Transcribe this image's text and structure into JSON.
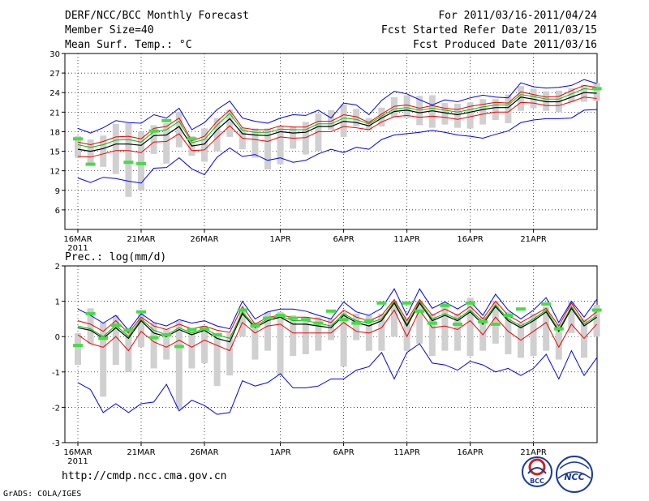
{
  "header": {
    "title": "DERF/NCC/BCC Monthly Forecast",
    "member_size": "Member Size=40",
    "variable": "Mean Surf. Temp.: °C",
    "period": "For 2011/03/16-2011/04/24",
    "started": "Fcst Started Refer Date 2011/03/15",
    "produced": "Fcst Produced Date 2011/03/16"
  },
  "footer": {
    "url": "http://cmdp.ncc.cma.gov.cn",
    "grads": "GrADS: COLA/IGES",
    "logo_left": "BCC",
    "logo_right": "NCC"
  },
  "colors": {
    "upper": "#0000ee",
    "upper_mid": "#ee0000",
    "mean": "#000000",
    "inner_upper": "#00bb00",
    "box": "#d0d0d0",
    "observed": "#44dd44"
  },
  "chart_data": [
    {
      "type": "line",
      "title": "Mean Surf. Temp.: °C",
      "ylim": [
        3,
        30
      ],
      "yticks": [
        6,
        9,
        12,
        15,
        18,
        21,
        24,
        27,
        30
      ],
      "xticks": [
        "16MAR",
        "21MAR",
        "26MAR",
        "1APR",
        "6APR",
        "11APR",
        "16APR",
        "21APR"
      ],
      "xtick_day": [
        0,
        5,
        10,
        16,
        21,
        26,
        31,
        36
      ],
      "year_label": "2011",
      "series": {
        "max": [
          18.5,
          17.8,
          18.6,
          19.7,
          19.4,
          19.3,
          20.6,
          20.1,
          21.6,
          18.3,
          19.4,
          21.4,
          22.7,
          20.1,
          19.6,
          19.3,
          20.1,
          20.6,
          20.5,
          21.3,
          20.1,
          22.4,
          22.1,
          20.6,
          22.8,
          24.2,
          23.8,
          22.9,
          22.1,
          22.9,
          22.6,
          23.2,
          23.6,
          23.3,
          23.2,
          25.5,
          24.9,
          24.7,
          24.8,
          25.1,
          26.0,
          25.4
        ],
        "upper": [
          16.4,
          16.0,
          16.5,
          17.2,
          17.3,
          16.9,
          18.5,
          18.8,
          20.1,
          16.6,
          17.3,
          19.6,
          21.3,
          18.6,
          18.3,
          18.3,
          18.9,
          18.7,
          18.7,
          19.6,
          19.6,
          20.6,
          20.3,
          19.4,
          20.7,
          21.9,
          22.1,
          21.6,
          22.0,
          21.6,
          21.4,
          21.9,
          22.2,
          22.5,
          22.4,
          24.1,
          23.7,
          23.3,
          23.4,
          24.3,
          25.1,
          24.8
        ],
        "mean": [
          15.3,
          15.0,
          15.4,
          16.1,
          16.1,
          15.9,
          17.4,
          17.5,
          18.8,
          15.8,
          16.1,
          18.3,
          20.0,
          17.7,
          17.5,
          17.4,
          18.0,
          17.8,
          17.9,
          18.8,
          18.8,
          19.6,
          19.4,
          18.9,
          20.1,
          21.1,
          21.3,
          20.9,
          21.2,
          20.9,
          20.6,
          21.0,
          21.4,
          21.7,
          21.7,
          23.3,
          23.0,
          22.6,
          22.6,
          23.3,
          24.0,
          23.9
        ],
        "lower": [
          14.2,
          14.1,
          14.6,
          15.1,
          15.1,
          14.8,
          16.4,
          16.5,
          17.7,
          15.1,
          15.2,
          17.1,
          18.9,
          17.0,
          16.8,
          16.5,
          17.2,
          17.0,
          17.1,
          18.0,
          18.0,
          18.8,
          18.6,
          18.3,
          19.5,
          20.3,
          20.5,
          20.2,
          20.4,
          20.2,
          19.9,
          20.3,
          20.7,
          21.0,
          21.0,
          22.5,
          22.4,
          22.0,
          22.0,
          22.6,
          23.3,
          23.1
        ],
        "min": [
          10.9,
          10.2,
          11.0,
          10.8,
          10.4,
          10.1,
          12.4,
          12.5,
          14.0,
          12.3,
          11.4,
          14.1,
          15.5,
          14.2,
          14.5,
          13.6,
          14.0,
          13.3,
          13.6,
          14.6,
          15.3,
          14.8,
          15.6,
          15.3,
          16.8,
          17.5,
          17.7,
          17.9,
          18.2,
          17.9,
          17.5,
          17.3,
          17.0,
          17.6,
          18.1,
          19.4,
          19.8,
          20.0,
          20.0,
          20.1,
          21.3,
          21.4
        ],
        "inner_upper": [
          16.0,
          15.6,
          16.0,
          16.7,
          16.8,
          16.4,
          18.0,
          18.3,
          19.6,
          16.3,
          16.8,
          19.0,
          20.8,
          18.2,
          17.9,
          17.9,
          18.4,
          18.3,
          18.3,
          19.2,
          19.2,
          20.1,
          19.9,
          19.2,
          20.4,
          21.5,
          21.7,
          21.3,
          21.6,
          21.3,
          21.0,
          21.4,
          21.8,
          22.1,
          22.1,
          23.7,
          23.4,
          23.0,
          23.0,
          23.8,
          24.6,
          24.4
        ],
        "box_top": [
          17.3,
          16.8,
          17.4,
          19.2,
          19.3,
          18.0,
          19.0,
          19.3,
          21.0,
          17.3,
          18.5,
          20.1,
          21.4,
          18.6,
          18.5,
          18.5,
          18.9,
          18.8,
          19.5,
          20.8,
          21.3,
          22.2,
          21.5,
          20.1,
          21.7,
          23.3,
          23.6,
          23.5,
          23.6,
          22.4,
          22.3,
          22.5,
          23.0,
          23.0,
          23.7,
          25.0,
          24.6,
          24.2,
          24.3,
          24.7,
          25.2,
          25.5
        ],
        "box_bottom": [
          14.0,
          13.2,
          12.6,
          11.5,
          8.0,
          9.0,
          14.6,
          13.1,
          15.6,
          14.3,
          13.4,
          15.0,
          17.2,
          15.3,
          14.0,
          12.2,
          13.0,
          15.4,
          14.5,
          15.0,
          18.3,
          17.2,
          18.8,
          18.2,
          18.8,
          20.2,
          20.1,
          19.0,
          18.6,
          19.1,
          18.6,
          18.5,
          19.1,
          19.8,
          19.3,
          21.2,
          21.6,
          21.2,
          21.0,
          22.5,
          22.6,
          22.7
        ],
        "observed": [
          16.9,
          13.0,
          null,
          null,
          13.3,
          13.1,
          18.1,
          19.7,
          null,
          16.9,
          null,
          null,
          null,
          null,
          null,
          null,
          null,
          null,
          null,
          null,
          null,
          null,
          null,
          null,
          null,
          null,
          null,
          null,
          null,
          null,
          null,
          null,
          null,
          null,
          null,
          null,
          null,
          null,
          null,
          null,
          null,
          24.6
        ]
      }
    },
    {
      "type": "line",
      "title": "Prec.: log(mm/d)",
      "ylim": [
        -3,
        2
      ],
      "yticks": [
        -3,
        -2,
        -1,
        0,
        1,
        2
      ],
      "xticks": [
        "16MAR",
        "21MAR",
        "26MAR",
        "1APR",
        "6APR",
        "11APR",
        "16APR",
        "21APR"
      ],
      "xtick_day": [
        0,
        5,
        10,
        16,
        21,
        26,
        31,
        36
      ],
      "year_label": "2011",
      "series": {
        "max": [
          0.78,
          0.6,
          0.38,
          0.6,
          0.18,
          0.65,
          0.4,
          0.3,
          0.48,
          0.38,
          0.45,
          0.3,
          0.22,
          1.0,
          0.5,
          0.7,
          0.78,
          0.78,
          0.72,
          0.6,
          0.5,
          0.98,
          0.7,
          0.6,
          0.8,
          1.35,
          0.6,
          1.35,
          0.8,
          0.98,
          0.78,
          1.0,
          0.6,
          1.2,
          0.75,
          0.5,
          0.75,
          1.1,
          0.4,
          1.0,
          0.55,
          1.05
        ],
        "upper": [
          0.45,
          0.35,
          0.15,
          0.45,
          0.1,
          0.55,
          0.3,
          0.2,
          0.35,
          0.22,
          0.3,
          0.18,
          0.12,
          0.85,
          0.35,
          0.55,
          0.6,
          0.55,
          0.55,
          0.5,
          0.4,
          0.75,
          0.55,
          0.45,
          0.6,
          1.05,
          0.45,
          1.05,
          0.6,
          0.78,
          0.6,
          0.85,
          0.5,
          1.0,
          0.6,
          0.4,
          0.6,
          0.8,
          0.3,
          0.95,
          0.42,
          0.7
        ],
        "mean": [
          0.25,
          0.18,
          -0.05,
          0.25,
          -0.05,
          0.45,
          0.1,
          0.0,
          0.2,
          0.05,
          0.18,
          -0.05,
          -0.15,
          0.65,
          0.25,
          0.45,
          0.55,
          0.35,
          0.35,
          0.3,
          0.25,
          0.6,
          0.4,
          0.3,
          0.45,
          0.95,
          0.3,
          0.95,
          0.45,
          0.6,
          0.45,
          0.7,
          0.35,
          0.85,
          0.45,
          0.25,
          0.45,
          0.7,
          0.15,
          0.8,
          0.3,
          0.55
        ],
        "lower": [
          0.05,
          -0.2,
          -0.3,
          0.0,
          -0.4,
          0.15,
          -0.15,
          -0.3,
          -0.1,
          -0.3,
          -0.1,
          -0.25,
          -0.4,
          0.4,
          0.1,
          0.3,
          0.35,
          0.1,
          0.1,
          0.1,
          0.1,
          0.4,
          0.15,
          0.1,
          0.25,
          0.75,
          0.0,
          0.75,
          0.25,
          0.3,
          0.2,
          0.45,
          0.05,
          0.55,
          0.15,
          -0.1,
          0.15,
          0.4,
          -0.3,
          0.35,
          -0.05,
          0.35
        ],
        "min": [
          -1.3,
          -1.5,
          -2.15,
          -1.9,
          -2.15,
          -1.9,
          -1.85,
          -1.35,
          -2.1,
          -1.8,
          -1.95,
          -2.2,
          -2.15,
          -1.25,
          -1.4,
          -1.3,
          -1.05,
          -1.45,
          -1.45,
          -1.4,
          -1.2,
          -1.2,
          -0.95,
          -0.85,
          -0.45,
          -1.2,
          -0.45,
          -0.2,
          -0.75,
          -0.8,
          -0.95,
          -0.7,
          -0.8,
          -1.0,
          -0.9,
          -1.1,
          -0.9,
          -0.5,
          -1.2,
          -0.4,
          -1.1,
          -0.6
        ],
        "inner_upper": [
          0.3,
          0.22,
          0.0,
          0.32,
          0.0,
          0.5,
          0.18,
          0.05,
          0.25,
          0.1,
          0.22,
          0.05,
          -0.05,
          0.7,
          0.3,
          0.5,
          0.58,
          0.45,
          0.45,
          0.38,
          0.3,
          0.65,
          0.45,
          0.38,
          0.5,
          1.0,
          0.35,
          1.0,
          0.5,
          0.65,
          0.5,
          0.75,
          0.42,
          0.9,
          0.5,
          0.3,
          0.5,
          0.75,
          0.2,
          0.85,
          0.35,
          0.6
        ],
        "box_top": [
          0.1,
          0.8,
          0.4,
          0.6,
          0.25,
          0.65,
          0.4,
          0.2,
          0.45,
          0.25,
          0.3,
          0.1,
          0.1,
          0.8,
          0.4,
          0.7,
          0.7,
          0.6,
          0.55,
          0.55,
          0.5,
          0.7,
          0.65,
          0.6,
          0.65,
          1.0,
          0.55,
          1.0,
          0.65,
          0.95,
          0.65,
          1.1,
          0.55,
          1.0,
          0.7,
          0.4,
          0.65,
          0.85,
          0.35,
          1.0,
          0.5,
          0.9
        ],
        "box_bottom": [
          -0.8,
          -0.2,
          -1.7,
          -0.8,
          -1.0,
          -0.3,
          -0.9,
          -0.65,
          -2.05,
          -0.9,
          -0.75,
          -1.4,
          -1.1,
          0.0,
          -0.65,
          -0.4,
          -1.1,
          -0.55,
          -0.5,
          -0.4,
          -0.1,
          -0.85,
          -0.1,
          -0.4,
          -0.4,
          0.0,
          -0.4,
          -0.2,
          -0.55,
          -0.4,
          -0.4,
          -0.55,
          -0.4,
          -0.2,
          -0.5,
          -0.6,
          -0.55,
          -0.4,
          -0.65,
          0.1,
          -0.6,
          0.0
        ],
        "observed": [
          -0.25,
          0.65,
          -0.05,
          0.32,
          0.18,
          0.7,
          -0.03,
          0.05,
          -0.28,
          0.2,
          0.22,
          0.05,
          null,
          0.75,
          0.3,
          0.52,
          0.6,
          0.52,
          0.48,
          0.38,
          0.72,
          0.48,
          0.38,
          0.45,
          0.95,
          null,
          0.95,
          0.72,
          0.38,
          0.88,
          0.35,
          0.95,
          0.42,
          0.35,
          0.6,
          0.78,
          null,
          0.92,
          0.22,
          null,
          null,
          0.75
        ]
      }
    }
  ]
}
